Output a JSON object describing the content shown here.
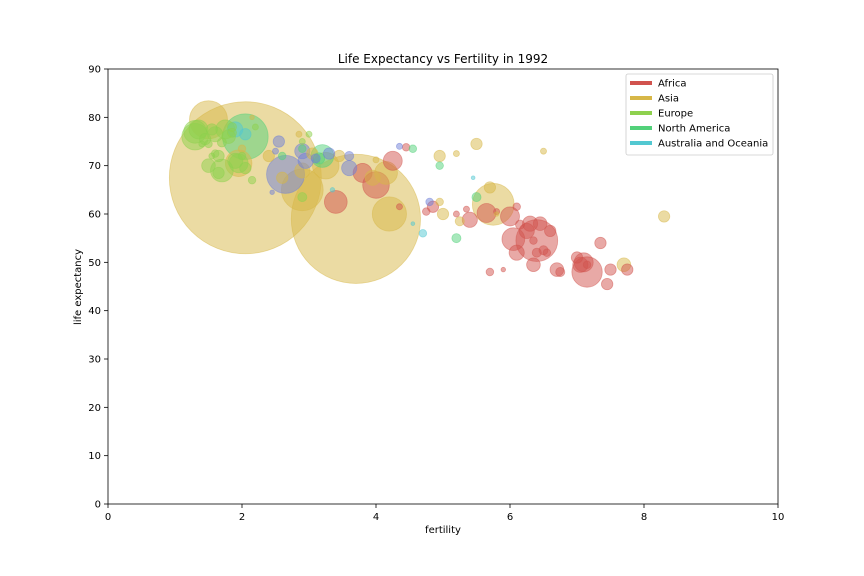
{
  "chart_data": {
    "type": "scatter",
    "title": "Life Expectancy vs Fertility in 1992",
    "xlabel": "fertility",
    "ylabel": "life expectancy",
    "xlim": [
      0,
      10
    ],
    "ylim": [
      0,
      90
    ],
    "xticks": [
      "0",
      "2",
      "4",
      "6",
      "8",
      "10"
    ],
    "yticks": [
      "0",
      "10",
      "20",
      "30",
      "40",
      "50",
      "60",
      "70",
      "80",
      "90"
    ],
    "grid": false,
    "legend_position": "top-right",
    "marker_alpha": 0.5,
    "legend": [
      {
        "name": "Africa",
        "color": "#d1534e"
      },
      {
        "name": "Asia",
        "color": "#d7b748"
      },
      {
        "name": "Europe",
        "color": "#8ed14e"
      },
      {
        "name": "North America",
        "color": "#52d17a"
      },
      {
        "name": "Australia and Oceania",
        "color": "#52c8d1"
      }
    ],
    "series": [
      {
        "name": "Africa",
        "color": "#d1534e",
        "points": [
          {
            "x": 3.4,
            "y": 62.5,
            "s": 3
          },
          {
            "x": 3.8,
            "y": 68.5,
            "s": 2.5
          },
          {
            "x": 4.0,
            "y": 66.0,
            "s": 3.5
          },
          {
            "x": 4.25,
            "y": 71.0,
            "s": 2.5
          },
          {
            "x": 4.45,
            "y": 73.8,
            "s": 1
          },
          {
            "x": 4.35,
            "y": 61.5,
            "s": 0.8
          },
          {
            "x": 4.75,
            "y": 60.5,
            "s": 1
          },
          {
            "x": 4.85,
            "y": 61.5,
            "s": 1.5
          },
          {
            "x": 5.2,
            "y": 60.0,
            "s": 0.8
          },
          {
            "x": 5.35,
            "y": 61.0,
            "s": 0.8
          },
          {
            "x": 5.4,
            "y": 58.8,
            "s": 2
          },
          {
            "x": 5.65,
            "y": 60.2,
            "s": 2.5
          },
          {
            "x": 5.7,
            "y": 48.0,
            "s": 1
          },
          {
            "x": 5.8,
            "y": 60.5,
            "s": 0.8
          },
          {
            "x": 5.9,
            "y": 48.5,
            "s": 0.6
          },
          {
            "x": 6.0,
            "y": 59.5,
            "s": 2.5
          },
          {
            "x": 6.05,
            "y": 54.8,
            "s": 3
          },
          {
            "x": 6.1,
            "y": 52.0,
            "s": 2
          },
          {
            "x": 6.1,
            "y": 61.5,
            "s": 1
          },
          {
            "x": 6.15,
            "y": 57.8,
            "s": 1.2
          },
          {
            "x": 6.25,
            "y": 56.5,
            "s": 2
          },
          {
            "x": 6.3,
            "y": 58.0,
            "s": 2
          },
          {
            "x": 6.35,
            "y": 54.5,
            "s": 1
          },
          {
            "x": 6.35,
            "y": 49.5,
            "s": 1.8
          },
          {
            "x": 6.4,
            "y": 52.0,
            "s": 1.2
          },
          {
            "x": 6.4,
            "y": 54.5,
            "s": 5.5
          },
          {
            "x": 6.45,
            "y": 58.0,
            "s": 1.8
          },
          {
            "x": 6.5,
            "y": 52.5,
            "s": 1.2
          },
          {
            "x": 6.55,
            "y": 52.0,
            "s": 1
          },
          {
            "x": 6.6,
            "y": 56.5,
            "s": 1.5
          },
          {
            "x": 6.7,
            "y": 48.5,
            "s": 1.8
          },
          {
            "x": 6.75,
            "y": 48.0,
            "s": 1.2
          },
          {
            "x": 7.0,
            "y": 51.0,
            "s": 1.5
          },
          {
            "x": 7.05,
            "y": 49.5,
            "s": 2
          },
          {
            "x": 7.1,
            "y": 50.0,
            "s": 2.5
          },
          {
            "x": 7.15,
            "y": 48.0,
            "s": 4
          },
          {
            "x": 7.15,
            "y": 49.5,
            "s": 1
          },
          {
            "x": 7.35,
            "y": 54.0,
            "s": 1.5
          },
          {
            "x": 7.45,
            "y": 45.5,
            "s": 1.5
          },
          {
            "x": 7.5,
            "y": 48.5,
            "s": 1.5
          },
          {
            "x": 7.75,
            "y": 48.5,
            "s": 1.5
          }
        ]
      },
      {
        "name": "Asia",
        "color": "#d7b748",
        "points": [
          {
            "x": 2.05,
            "y": 67.5,
            "s": 20
          },
          {
            "x": 3.7,
            "y": 59.0,
            "s": 17
          },
          {
            "x": 1.5,
            "y": 79.5,
            "s": 5
          },
          {
            "x": 2.9,
            "y": 65.0,
            "s": 5.5
          },
          {
            "x": 4.2,
            "y": 60.0,
            "s": 4.5
          },
          {
            "x": 5.75,
            "y": 62.0,
            "s": 5.5
          },
          {
            "x": 3.25,
            "y": 70.0,
            "s": 3.5
          },
          {
            "x": 4.15,
            "y": 68.5,
            "s": 3
          },
          {
            "x": 2.9,
            "y": 69.0,
            "s": 2
          },
          {
            "x": 1.95,
            "y": 70.5,
            "s": 3.5
          },
          {
            "x": 2.4,
            "y": 72.0,
            "s": 1.5
          },
          {
            "x": 3.45,
            "y": 72.0,
            "s": 1.5
          },
          {
            "x": 3.95,
            "y": 67.5,
            "s": 2
          },
          {
            "x": 4.95,
            "y": 72.0,
            "s": 1.5
          },
          {
            "x": 5.5,
            "y": 74.5,
            "s": 1.5
          },
          {
            "x": 5.7,
            "y": 65.5,
            "s": 1.5
          },
          {
            "x": 5.0,
            "y": 60.0,
            "s": 1.5
          },
          {
            "x": 5.25,
            "y": 58.5,
            "s": 1.2
          },
          {
            "x": 4.95,
            "y": 62.5,
            "s": 1
          },
          {
            "x": 5.2,
            "y": 72.5,
            "s": 0.8
          },
          {
            "x": 6.5,
            "y": 73.0,
            "s": 0.8
          },
          {
            "x": 7.7,
            "y": 49.5,
            "s": 1.8
          },
          {
            "x": 8.3,
            "y": 59.5,
            "s": 1.5
          },
          {
            "x": 4.0,
            "y": 71.2,
            "s": 0.8
          },
          {
            "x": 3.05,
            "y": 72.5,
            "s": 1.5
          },
          {
            "x": 2.0,
            "y": 73.5,
            "s": 1
          },
          {
            "x": 2.15,
            "y": 80.0,
            "s": 0.6
          },
          {
            "x": 2.85,
            "y": 76.5,
            "s": 0.8
          },
          {
            "x": 5.8,
            "y": 60.0,
            "s": 0.6
          },
          {
            "x": 2.6,
            "y": 67.5,
            "s": 1.5
          }
        ]
      },
      {
        "name": "Europe",
        "color": "#8ed14e",
        "points": [
          {
            "x": 1.3,
            "y": 77.0,
            "s": 3
          },
          {
            "x": 1.3,
            "y": 76.0,
            "s": 3.5
          },
          {
            "x": 1.35,
            "y": 77.5,
            "s": 2.5
          },
          {
            "x": 1.45,
            "y": 75.5,
            "s": 1.5
          },
          {
            "x": 1.5,
            "y": 74.5,
            "s": 1
          },
          {
            "x": 1.55,
            "y": 77.5,
            "s": 1.5
          },
          {
            "x": 1.6,
            "y": 76.5,
            "s": 2
          },
          {
            "x": 1.65,
            "y": 72.0,
            "s": 1.5
          },
          {
            "x": 1.7,
            "y": 74.8,
            "s": 1.2
          },
          {
            "x": 1.75,
            "y": 77.5,
            "s": 2.5
          },
          {
            "x": 1.8,
            "y": 76.0,
            "s": 1.8
          },
          {
            "x": 1.7,
            "y": 69.0,
            "s": 3
          },
          {
            "x": 1.65,
            "y": 68.5,
            "s": 1.5
          },
          {
            "x": 1.5,
            "y": 70.0,
            "s": 1.8
          },
          {
            "x": 1.9,
            "y": 71.0,
            "s": 2
          },
          {
            "x": 1.95,
            "y": 70.5,
            "s": 2.5
          },
          {
            "x": 2.05,
            "y": 69.5,
            "s": 1.5
          },
          {
            "x": 2.15,
            "y": 67.0,
            "s": 1
          },
          {
            "x": 1.85,
            "y": 78.0,
            "s": 1.2
          },
          {
            "x": 2.0,
            "y": 72.0,
            "s": 1
          },
          {
            "x": 1.6,
            "y": 72.5,
            "s": 1
          },
          {
            "x": 2.9,
            "y": 63.5,
            "s": 1.2
          },
          {
            "x": 2.9,
            "y": 75.0,
            "s": 0.8
          },
          {
            "x": 3.0,
            "y": 76.5,
            "s": 0.8
          },
          {
            "x": 1.4,
            "y": 74.5,
            "s": 0.8
          },
          {
            "x": 1.55,
            "y": 72.0,
            "s": 0.8
          },
          {
            "x": 1.85,
            "y": 76.8,
            "s": 1.2
          },
          {
            "x": 2.2,
            "y": 78.0,
            "s": 0.8
          }
        ]
      },
      {
        "name": "North America",
        "color": "#52d17a",
        "points": [
          {
            "x": 2.05,
            "y": 76.0,
            "s": 6
          },
          {
            "x": 3.2,
            "y": 72.0,
            "s": 3
          },
          {
            "x": 3.15,
            "y": 71.5,
            "s": 1.5
          },
          {
            "x": 2.9,
            "y": 73.5,
            "s": 1
          },
          {
            "x": 4.95,
            "y": 70.0,
            "s": 1
          },
          {
            "x": 4.55,
            "y": 73.5,
            "s": 1
          },
          {
            "x": 5.2,
            "y": 55.0,
            "s": 1.2
          },
          {
            "x": 5.5,
            "y": 63.5,
            "s": 1.2
          },
          {
            "x": 2.6,
            "y": 72.0,
            "s": 1
          }
        ]
      },
      {
        "name": "Australia and Oceania",
        "color": "#52c8d1",
        "points": [
          {
            "x": 1.9,
            "y": 77.5,
            "s": 2
          },
          {
            "x": 2.05,
            "y": 76.5,
            "s": 1.5
          },
          {
            "x": 4.7,
            "y": 56.0,
            "s": 1
          },
          {
            "x": 3.35,
            "y": 65.0,
            "s": 0.6
          },
          {
            "x": 4.55,
            "y": 58.0,
            "s": 0.5
          },
          {
            "x": 5.45,
            "y": 67.5,
            "s": 0.5
          }
        ]
      },
      {
        "name": "",
        "color": "#6f7fd8",
        "points": [
          {
            "x": 2.65,
            "y": 68.2,
            "s": 5
          },
          {
            "x": 2.9,
            "y": 73.0,
            "s": 2
          },
          {
            "x": 2.95,
            "y": 71.0,
            "s": 2
          },
          {
            "x": 3.3,
            "y": 72.5,
            "s": 1.5
          },
          {
            "x": 3.6,
            "y": 72.0,
            "s": 1.2
          },
          {
            "x": 3.6,
            "y": 69.5,
            "s": 2
          },
          {
            "x": 4.35,
            "y": 74.0,
            "s": 0.8
          },
          {
            "x": 4.8,
            "y": 62.5,
            "s": 1
          },
          {
            "x": 2.55,
            "y": 75.0,
            "s": 1.5
          },
          {
            "x": 2.5,
            "y": 73.0,
            "s": 0.8
          },
          {
            "x": 2.45,
            "y": 64.5,
            "s": 0.6
          },
          {
            "x": 3.1,
            "y": 71.5,
            "s": 1.2
          }
        ]
      }
    ]
  }
}
